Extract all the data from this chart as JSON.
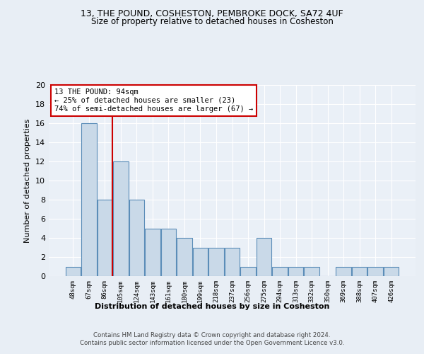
{
  "title1": "13, THE POUND, COSHESTON, PEMBROKE DOCK, SA72 4UF",
  "title2": "Size of property relative to detached houses in Cosheston",
  "xlabel": "Distribution of detached houses by size in Cosheston",
  "ylabel": "Number of detached properties",
  "bar_labels": [
    "48sqm",
    "67sqm",
    "86sqm",
    "105sqm",
    "124sqm",
    "143sqm",
    "161sqm",
    "180sqm",
    "199sqm",
    "218sqm",
    "237sqm",
    "256sqm",
    "275sqm",
    "294sqm",
    "313sqm",
    "332sqm",
    "350sqm",
    "369sqm",
    "388sqm",
    "407sqm",
    "426sqm"
  ],
  "bar_values": [
    1,
    16,
    8,
    12,
    8,
    5,
    5,
    4,
    3,
    3,
    3,
    1,
    4,
    1,
    1,
    1,
    0,
    1,
    1,
    1,
    1
  ],
  "bar_color": "#c9d9e8",
  "bar_edge_color": "#5b8db8",
  "red_line_index": 2,
  "annotation_title": "13 THE POUND: 94sqm",
  "annotation_line1": "← 25% of detached houses are smaller (23)",
  "annotation_line2": "74% of semi-detached houses are larger (67) →",
  "annotation_box_color": "#ffffff",
  "annotation_box_edge_color": "#cc0000",
  "red_line_color": "#cc0000",
  "footer1": "Contains HM Land Registry data © Crown copyright and database right 2024.",
  "footer2": "Contains public sector information licensed under the Open Government Licence v3.0.",
  "ylim": [
    0,
    20
  ],
  "yticks": [
    0,
    2,
    4,
    6,
    8,
    10,
    12,
    14,
    16,
    18,
    20
  ],
  "bg_color": "#e8eef5",
  "plot_bg_color": "#eaf0f7"
}
